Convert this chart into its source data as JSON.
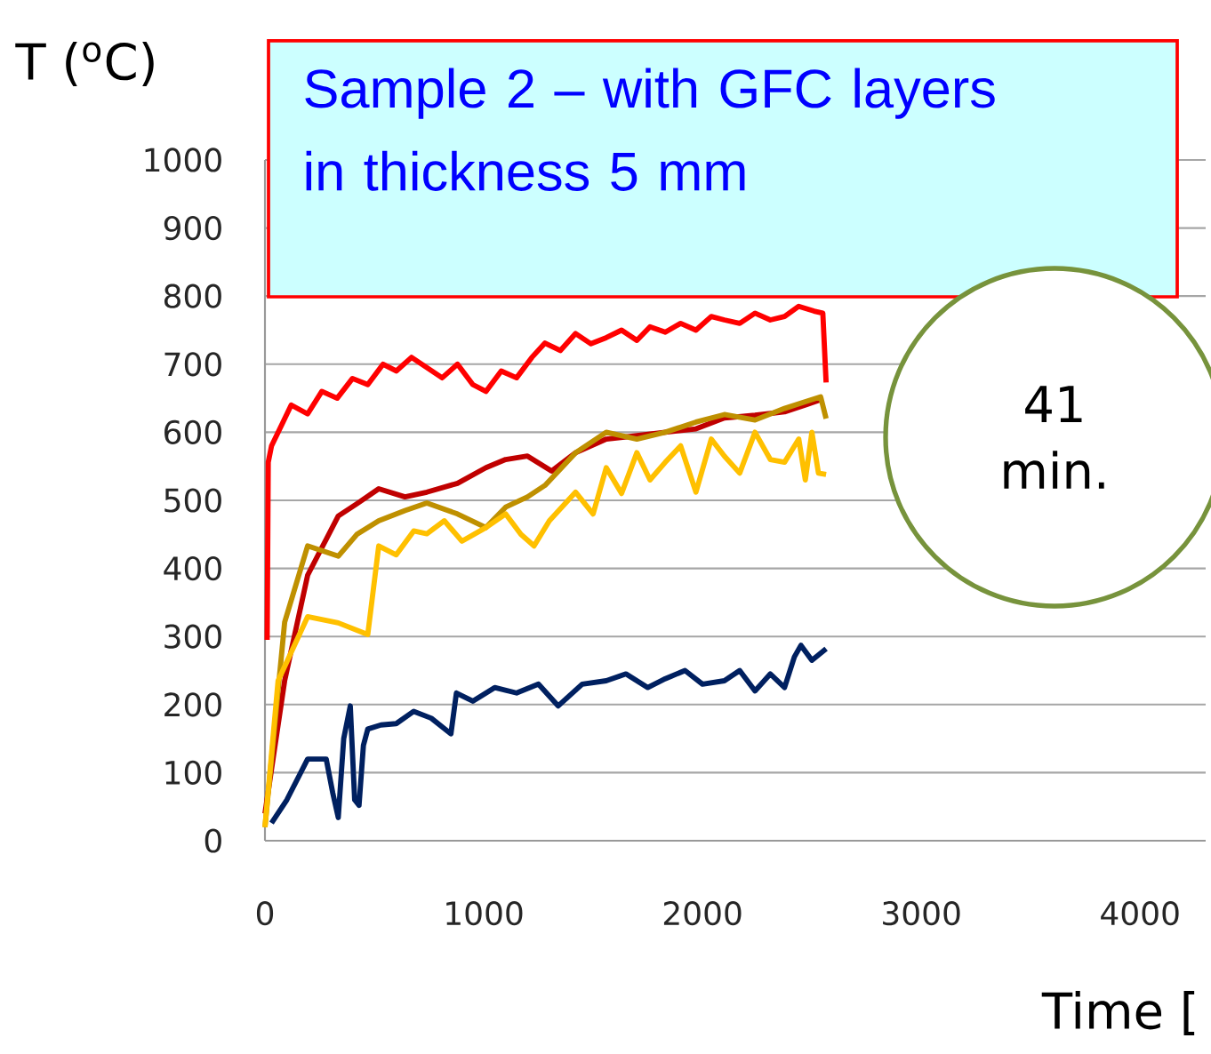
{
  "chart_data": {
    "type": "line",
    "xlabel": "Time [",
    "ylabel": "T ($^{o}$C)",
    "annotations": [
      "Sample 2 – with GFC layers in thickness 5 mm",
      "41 min."
    ],
    "xlim": [
      0,
      4300
    ],
    "ylim": [
      0,
      1000
    ],
    "xticks": [
      0,
      1000,
      2000,
      3000,
      4000
    ],
    "yticks": [
      0,
      100,
      200,
      300,
      400,
      500,
      600,
      700,
      800,
      900,
      1000
    ],
    "grid": "y",
    "marker": "none",
    "line_style": "solid",
    "series": [
      {
        "color": "#ff0000",
        "x": [
          10,
          15,
          30,
          60,
          120,
          195,
          260,
          330,
          400,
          470,
          540,
          600,
          670,
          740,
          810,
          880,
          950,
          1010,
          1080,
          1150,
          1220,
          1280,
          1350,
          1420,
          1490,
          1560,
          1630,
          1700,
          1760,
          1830,
          1900,
          1970,
          2040,
          2100,
          2170,
          2240,
          2310,
          2375,
          2440,
          2510,
          2550,
          2565
        ],
        "values": [
          295,
          556,
          580,
          600,
          640,
          627,
          660,
          650,
          679,
          670,
          700,
          690,
          710,
          695,
          680,
          700,
          670,
          660,
          690,
          680,
          710,
          731,
          720,
          745,
          730,
          739,
          750,
          735,
          755,
          747,
          760,
          750,
          770,
          765,
          760,
          775,
          765,
          770,
          785,
          778,
          775,
          673
        ]
      },
      {
        "color": "#c00000",
        "x": [
          0,
          90,
          195,
          335,
          420,
          520,
          640,
          740,
          880,
          1010,
          1100,
          1200,
          1310,
          1420,
          1560,
          1700,
          1830,
          1970,
          2100,
          2240,
          2375,
          2470,
          2540
        ],
        "values": [
          40,
          235,
          390,
          477,
          495,
          517,
          505,
          512,
          525,
          548,
          560,
          565,
          543,
          570,
          590,
          595,
          600,
          605,
          621,
          625,
          630,
          640,
          648
        ]
      },
      {
        "color": "#bf9000",
        "x": [
          0,
          90,
          195,
          335,
          420,
          520,
          640,
          740,
          880,
          1010,
          1100,
          1200,
          1280,
          1420,
          1560,
          1700,
          1830,
          1970,
          2100,
          2240,
          2375,
          2470,
          2540,
          2565
        ],
        "values": [
          20,
          321,
          433,
          418,
          450,
          470,
          485,
          496,
          480,
          460,
          490,
          505,
          522,
          570,
          600,
          590,
          600,
          615,
          626,
          618,
          635,
          645,
          652,
          620
        ]
      },
      {
        "color": "#ffc000",
        "x": [
          0,
          60,
          195,
          335,
          470,
          520,
          600,
          680,
          740,
          820,
          900,
          1010,
          1100,
          1170,
          1230,
          1300,
          1420,
          1500,
          1560,
          1630,
          1700,
          1760,
          1830,
          1900,
          1970,
          2040,
          2100,
          2170,
          2240,
          2310,
          2375,
          2440,
          2470,
          2500,
          2530,
          2565
        ],
        "values": [
          20,
          235,
          329,
          320,
          303,
          433,
          420,
          455,
          451,
          470,
          440,
          460,
          480,
          450,
          433,
          470,
          512,
          480,
          548,
          510,
          570,
          530,
          556,
          580,
          512,
          590,
          565,
          540,
          600,
          560,
          556,
          590,
          530,
          600,
          540,
          538
        ]
      },
      {
        "color": "#002060",
        "x": [
          30,
          100,
          195,
          280,
          310,
          335,
          360,
          390,
          410,
          430,
          450,
          470,
          530,
          600,
          680,
          760,
          850,
          875,
          950,
          1050,
          1150,
          1250,
          1340,
          1450,
          1560,
          1650,
          1750,
          1830,
          1920,
          2000,
          2100,
          2170,
          2240,
          2310,
          2375,
          2420,
          2450,
          2500,
          2565
        ],
        "values": [
          26,
          60,
          120,
          120,
          70,
          34,
          150,
          198,
          60,
          52,
          140,
          164,
          170,
          172,
          190,
          180,
          157,
          217,
          205,
          225,
          217,
          230,
          198,
          230,
          235,
          245,
          225,
          238,
          250,
          230,
          235,
          250,
          220,
          245,
          225,
          270,
          287,
          265,
          282
        ]
      }
    ]
  }
}
